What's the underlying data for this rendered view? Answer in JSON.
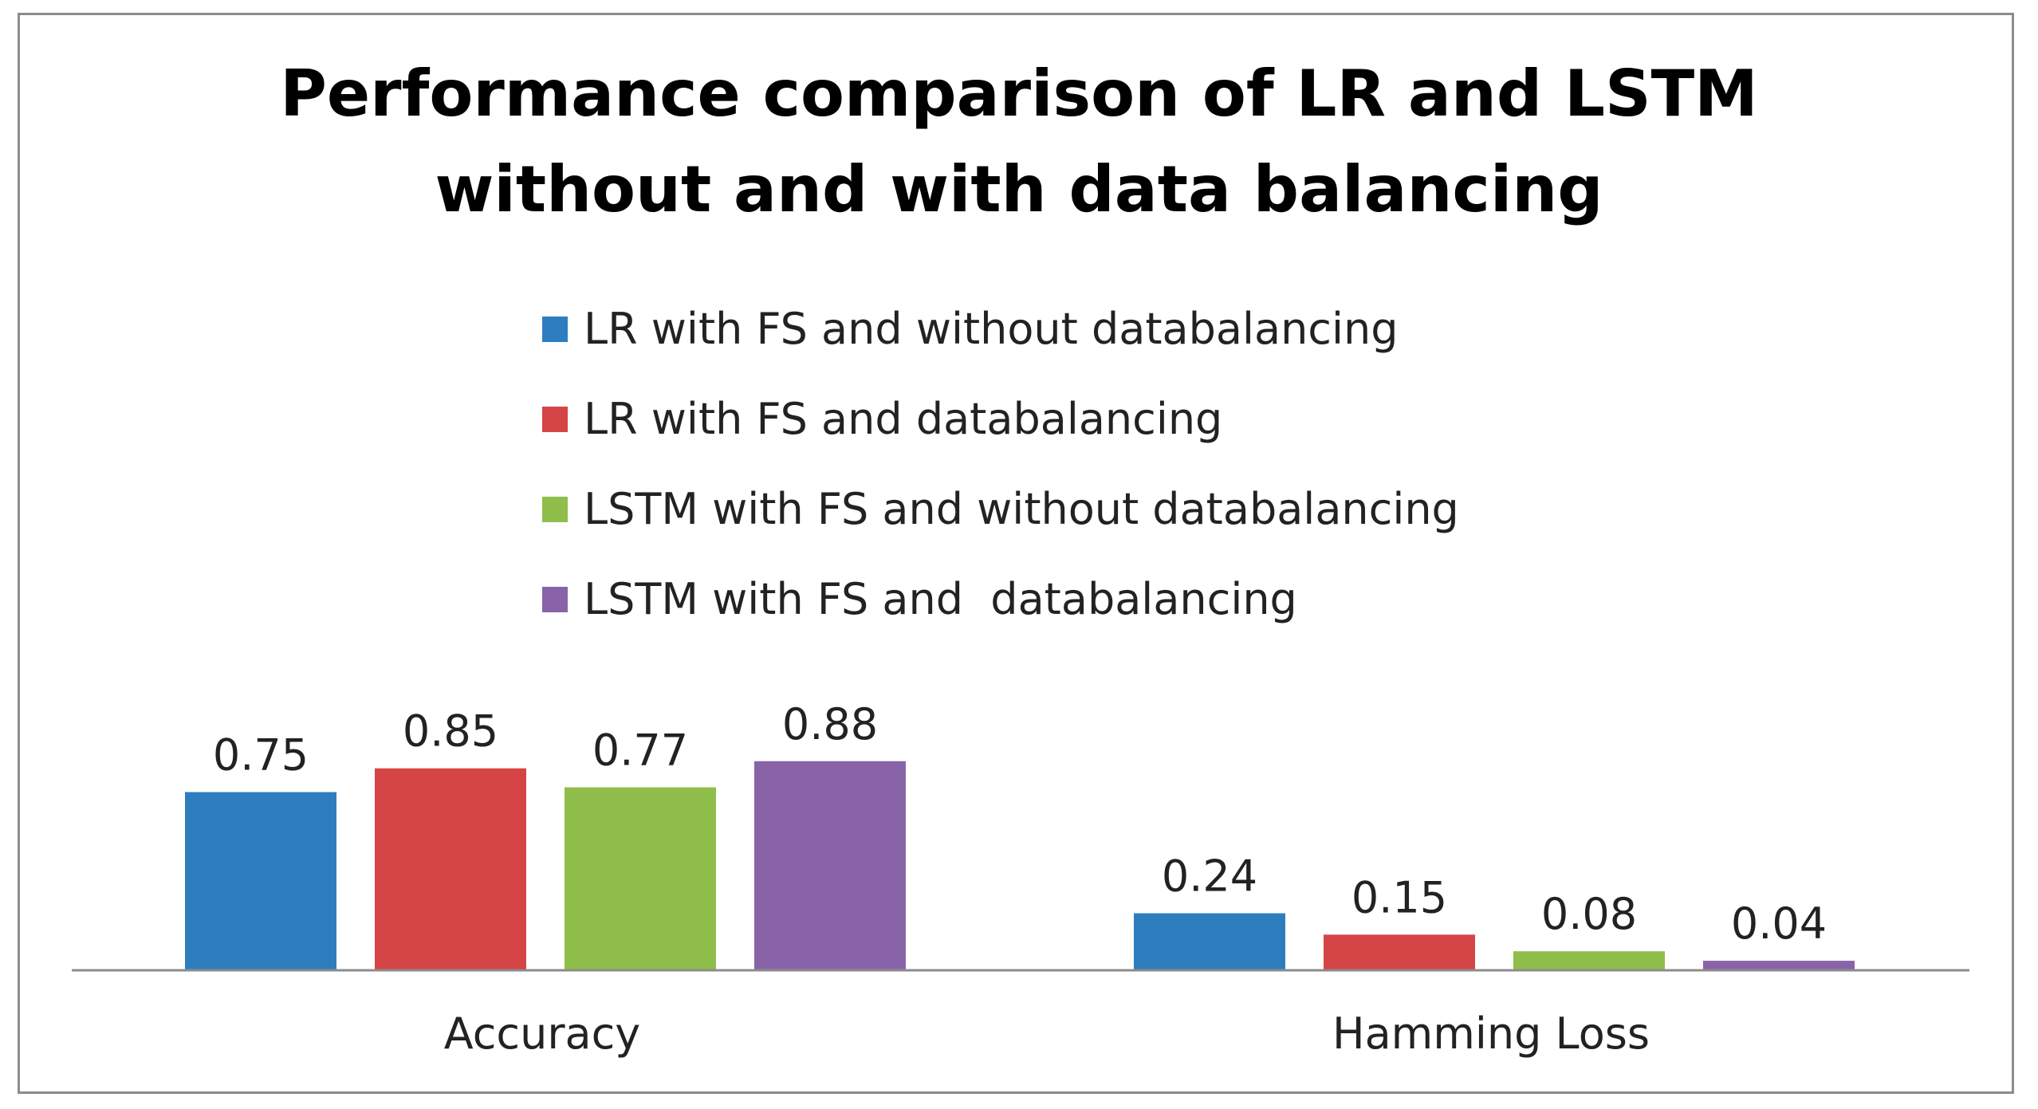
{
  "chart_data": {
    "type": "bar",
    "title": "Performance comparison of LR and LSTM without and with data balancing",
    "title_lines": [
      "Performance comparison of LR and LSTM",
      "without and with data balancing"
    ],
    "categories": [
      "Accuracy",
      "Hamming Loss"
    ],
    "series": [
      {
        "name": "LR with FS and without databalancing",
        "color": "#2e7ebf",
        "values": [
          0.75,
          0.24
        ],
        "labels": [
          "0.75",
          "0.24"
        ]
      },
      {
        "name": "LR with FS and databalancing",
        "color": "#d64545",
        "values": [
          0.85,
          0.15
        ],
        "labels": [
          "0.85",
          "0.15"
        ]
      },
      {
        "name": "LSTM with FS and without databalancing",
        "color": "#8fbe4a",
        "values": [
          0.77,
          0.08
        ],
        "labels": [
          "0.77",
          "0.08"
        ]
      },
      {
        "name": "LSTM with FS and  databalancing",
        "color": "#8963a8",
        "values": [
          0.88,
          0.04
        ],
        "labels": [
          "0.88",
          "0.04"
        ]
      }
    ],
    "xlabel": "",
    "ylabel": "",
    "ylim": [
      0,
      1.0
    ],
    "grid": false,
    "legend_position": "top-center"
  }
}
